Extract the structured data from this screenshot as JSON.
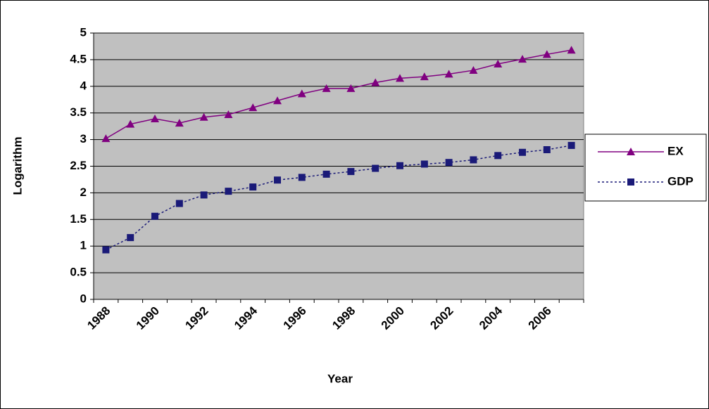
{
  "chart_data": {
    "type": "line",
    "x_label": "Year",
    "y_label": "Logarithm",
    "categories": [
      "1988",
      null,
      "1990",
      null,
      "1992",
      null,
      "1994",
      null,
      "1996",
      null,
      "1998",
      null,
      "2000",
      null,
      "2002",
      null,
      "2004",
      null,
      "2006",
      null
    ],
    "series": [
      {
        "name": "EX",
        "color": "#800080",
        "marker": "triangle",
        "dashed": false,
        "values": [
          3.02,
          3.29,
          3.39,
          3.31,
          3.42,
          3.47,
          3.6,
          3.73,
          3.86,
          3.96,
          3.96,
          4.07,
          4.15,
          4.18,
          4.23,
          4.3,
          4.42,
          4.51,
          4.6,
          4.68
        ]
      },
      {
        "name": "GDP",
        "color": "#1a1a78",
        "marker": "square",
        "dashed": true,
        "values": [
          0.93,
          1.16,
          1.56,
          1.8,
          1.96,
          2.03,
          2.11,
          2.24,
          2.29,
          2.35,
          2.4,
          2.46,
          2.51,
          2.54,
          2.57,
          2.62,
          2.7,
          2.76,
          2.81,
          2.89
        ]
      }
    ],
    "ylim": [
      0,
      5
    ],
    "yticks": [
      0,
      0.5,
      1,
      1.5,
      2,
      2.5,
      3,
      3.5,
      4,
      4.5,
      5
    ],
    "grid": true,
    "plot_background": "#c0c0c0",
    "legend": "right"
  }
}
